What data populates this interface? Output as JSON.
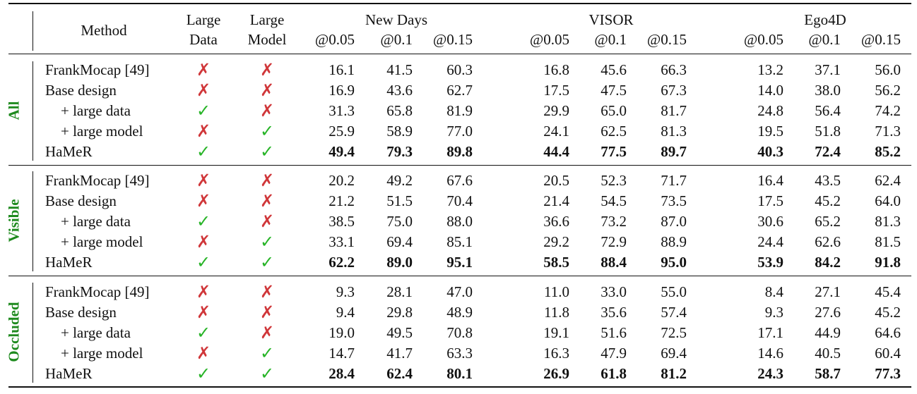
{
  "header": {
    "method": "Method",
    "large_data": [
      "Large",
      "Data"
    ],
    "large_model": [
      "Large",
      "Model"
    ],
    "groups": [
      "New Days",
      "VISOR",
      "Ego4D"
    ],
    "thresholds": [
      "@0.05",
      "@0.1",
      "@0.15"
    ]
  },
  "sections": [
    {
      "label": "All",
      "rows": [
        {
          "method": "FrankMocap [49]",
          "data": false,
          "model": false,
          "values": [
            "16.1",
            "41.5",
            "60.3",
            "16.8",
            "45.6",
            "66.3",
            "13.2",
            "37.1",
            "56.0"
          ],
          "bold": false
        },
        {
          "method": "Base design",
          "data": false,
          "model": false,
          "values": [
            "16.9",
            "43.6",
            "62.7",
            "17.5",
            "47.5",
            "67.3",
            "14.0",
            "38.0",
            "56.2"
          ],
          "bold": false
        },
        {
          "method": "+ large data",
          "data": true,
          "model": false,
          "values": [
            "31.3",
            "65.8",
            "81.9",
            "29.9",
            "65.0",
            "81.7",
            "24.8",
            "56.4",
            "74.2"
          ],
          "bold": false
        },
        {
          "method": "+ large model",
          "data": false,
          "model": true,
          "values": [
            "25.9",
            "58.9",
            "77.0",
            "24.1",
            "62.5",
            "81.3",
            "19.5",
            "51.8",
            "71.3"
          ],
          "bold": false
        },
        {
          "method": "HaMeR",
          "data": true,
          "model": true,
          "values": [
            "49.4",
            "79.3",
            "89.8",
            "44.4",
            "77.5",
            "89.7",
            "40.3",
            "72.4",
            "85.2"
          ],
          "bold": true
        }
      ]
    },
    {
      "label": "Visible",
      "rows": [
        {
          "method": "FrankMocap [49]",
          "data": false,
          "model": false,
          "values": [
            "20.2",
            "49.2",
            "67.6",
            "20.5",
            "52.3",
            "71.7",
            "16.4",
            "43.5",
            "62.4"
          ],
          "bold": false
        },
        {
          "method": "Base design",
          "data": false,
          "model": false,
          "values": [
            "21.2",
            "51.5",
            "70.4",
            "21.4",
            "54.5",
            "73.5",
            "17.5",
            "45.2",
            "64.0"
          ],
          "bold": false
        },
        {
          "method": "+ large data",
          "data": true,
          "model": false,
          "values": [
            "38.5",
            "75.0",
            "88.0",
            "36.6",
            "73.2",
            "87.0",
            "30.6",
            "65.2",
            "81.3"
          ],
          "bold": false
        },
        {
          "method": "+ large model",
          "data": false,
          "model": true,
          "values": [
            "33.1",
            "69.4",
            "85.1",
            "29.2",
            "72.9",
            "88.9",
            "24.4",
            "62.6",
            "81.5"
          ],
          "bold": false
        },
        {
          "method": "HaMeR",
          "data": true,
          "model": true,
          "values": [
            "62.2",
            "89.0",
            "95.1",
            "58.5",
            "88.4",
            "95.0",
            "53.9",
            "84.2",
            "91.8"
          ],
          "bold": true
        }
      ]
    },
    {
      "label": "Occluded",
      "rows": [
        {
          "method": "FrankMocap [49]",
          "data": false,
          "model": false,
          "values": [
            "9.3",
            "28.1",
            "47.0",
            "11.0",
            "33.0",
            "55.0",
            "8.4",
            "27.1",
            "45.4"
          ],
          "bold": false
        },
        {
          "method": "Base design",
          "data": false,
          "model": false,
          "values": [
            "9.4",
            "29.8",
            "48.9",
            "11.8",
            "35.6",
            "57.4",
            "9.3",
            "27.6",
            "45.2"
          ],
          "bold": false
        },
        {
          "method": "+ large data",
          "data": true,
          "model": false,
          "values": [
            "19.0",
            "49.5",
            "70.8",
            "19.1",
            "51.6",
            "72.5",
            "17.1",
            "44.9",
            "64.6"
          ],
          "bold": false
        },
        {
          "method": "+ large model",
          "data": false,
          "model": true,
          "values": [
            "14.7",
            "41.7",
            "63.3",
            "16.3",
            "47.9",
            "69.4",
            "14.6",
            "40.5",
            "60.4"
          ],
          "bold": false
        },
        {
          "method": "HaMeR",
          "data": true,
          "model": true,
          "values": [
            "28.4",
            "62.4",
            "80.1",
            "26.9",
            "61.8",
            "81.2",
            "24.3",
            "58.7",
            "77.3"
          ],
          "bold": true
        }
      ]
    }
  ],
  "symbols": {
    "check": "✓",
    "cross": "✗"
  },
  "colors": {
    "check": "#27b427",
    "cross": "#d0373a",
    "section_label": "#1e8a1e"
  }
}
